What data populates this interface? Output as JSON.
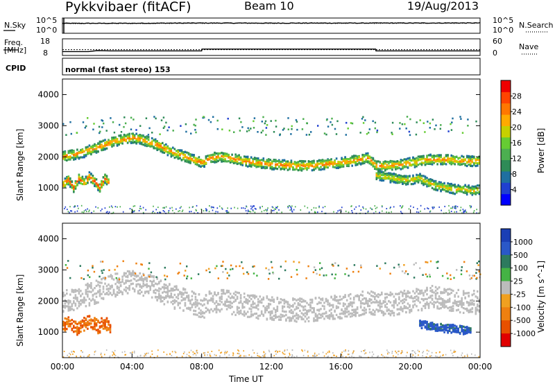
{
  "header": {
    "title": "Pykkvibaer (fitACF)",
    "beam": "Beam 10",
    "date": "19/Aug/2013"
  },
  "noise_panel": {
    "left_label": "N.Sky",
    "left_ticks": [
      "10^5",
      "10^0"
    ],
    "right_label": "N.Search",
    "right_ticks": [
      "10^5",
      "10^0"
    ]
  },
  "freq_panel": {
    "left_label_1": "Freq.",
    "left_label_2": "[MHz]",
    "left_ticks": [
      "18",
      "8"
    ],
    "right_label": "Nave",
    "right_ticks": [
      "60",
      "0"
    ]
  },
  "cpid": {
    "label": "CPID",
    "mode": "normal (fast stereo) 153"
  },
  "chart_data": [
    {
      "type": "line",
      "panel": "noise",
      "series": [
        {
          "name": "N.Sky",
          "style": "solid",
          "x": [
            "00:00",
            "04:00",
            "06:00",
            "08:00",
            "12:00",
            "16:00",
            "20:00",
            "24:00"
          ],
          "values": [
            2500,
            2600,
            3000,
            3200,
            3000,
            3100,
            3200,
            3500
          ]
        },
        {
          "name": "N.Search",
          "style": "dotted",
          "x": [
            "00:00",
            "04:00",
            "06:00",
            "08:00",
            "12:00",
            "16:00",
            "20:00",
            "24:00"
          ],
          "values": [
            2000,
            2100,
            2400,
            2500,
            2400,
            2500,
            2600,
            2800
          ]
        }
      ]
    },
    {
      "type": "line",
      "panel": "frequency",
      "series": [
        {
          "name": "Freq.",
          "unit": "MHz",
          "style": "solid",
          "x": [
            "00:00",
            "01:30",
            "02:00",
            "02:45",
            "08:00",
            "08:01",
            "18:00",
            "18:01",
            "24:00"
          ],
          "values": [
            9.8,
            9.8,
            10.5,
            10.3,
            10.3,
            11.6,
            11.6,
            10.3,
            10.3
          ]
        },
        {
          "name": "Nave",
          "style": "dotted",
          "x": [
            "00:00",
            "24:00"
          ],
          "values": [
            19,
            19
          ]
        }
      ],
      "ylim_left": [
        8,
        18
      ],
      "ylim_right": [
        0,
        60
      ]
    },
    {
      "type": "heatmap",
      "panel": "power",
      "ylabel": "Slant Range [km]",
      "xlabel": "",
      "ylim": [
        180,
        4500
      ],
      "yticks": [
        "1000",
        "2000",
        "3000",
        "4000"
      ],
      "colorbar": {
        "label": "Power [dB]",
        "ticks": [
          "4",
          "8",
          "12",
          "16",
          "20",
          "24",
          "28"
        ],
        "range": [
          0,
          32
        ]
      },
      "bands": [
        {
          "t": [
            0.0,
            0.5,
            1.0,
            1.5,
            2.0,
            2.5,
            3.0,
            3.5,
            4.0,
            4.5,
            5.0,
            5.5,
            6.0,
            6.5,
            7.0,
            7.5,
            8.0,
            8.5,
            9.0,
            9.5,
            10.0,
            10.5,
            11.0,
            11.5,
            12.0,
            12.5,
            13.0,
            13.5,
            14.0,
            14.5,
            15.0,
            15.5,
            16.0,
            16.5,
            17.0,
            17.5,
            18.0,
            18.5,
            19.0,
            19.5,
            20.0,
            20.5,
            21.0,
            21.5,
            22.0,
            22.5,
            23.0,
            23.5,
            24.0
          ],
          "range_km": [
            2000,
            2050,
            2100,
            2200,
            2300,
            2400,
            2500,
            2550,
            2600,
            2550,
            2450,
            2350,
            2200,
            2100,
            2000,
            1900,
            1800,
            1950,
            2000,
            1950,
            1900,
            1850,
            1800,
            1780,
            1750,
            1730,
            1720,
            1700,
            1700,
            1720,
            1750,
            1780,
            1800,
            1850,
            1900,
            1950,
            1700,
            1700,
            1720,
            1750,
            1800,
            1850,
            1900,
            1900,
            1900,
            1880,
            1860,
            1850,
            1850
          ],
          "power_db": 26,
          "width_km": 320
        },
        {
          "t": [
            0.0,
            0.3,
            0.6,
            0.9,
            1.2,
            1.5,
            1.8,
            2.1,
            2.4,
            2.7
          ],
          "range_km": [
            1100,
            1250,
            1000,
            1300,
            1150,
            1350,
            1200,
            1000,
            1300,
            1100
          ],
          "power_db": 29,
          "width_km": 300
        },
        {
          "t": [
            18.0,
            18.5,
            19.0,
            19.5,
            20.0,
            20.5,
            21.0,
            21.5,
            22.0,
            22.5,
            23.0,
            23.5,
            24.0
          ],
          "range_km": [
            1400,
            1350,
            1300,
            1250,
            1250,
            1300,
            1150,
            1050,
            1000,
            950,
            950,
            900,
            950
          ],
          "power_db": 22,
          "width_km": 300
        }
      ]
    },
    {
      "type": "heatmap",
      "panel": "velocity",
      "ylabel": "Slant Range [km]",
      "xlabel": "Time UT",
      "ylim": [
        180,
        4500
      ],
      "yticks": [
        "1000",
        "2000",
        "3000",
        "4000"
      ],
      "xticks": [
        "00:00",
        "04:00",
        "08:00",
        "12:00",
        "16:00",
        "20:00",
        "00:00"
      ],
      "colorbar": {
        "label": "Velocity [m s^-1]",
        "ticks": [
          "1000",
          "500",
          "100",
          "25",
          "-25",
          "-100",
          "-500",
          "-1000"
        ]
      },
      "bands": [
        {
          "t": [
            0.0,
            0.5,
            1.0,
            1.5,
            2.0,
            2.5,
            3.0,
            3.5,
            4.0,
            4.5,
            5.0,
            5.5,
            6.0,
            6.5,
            7.0,
            7.5,
            8.0,
            8.5,
            9.0,
            9.5,
            10.0,
            10.5,
            11.0,
            11.5,
            12.0,
            12.5,
            13.0,
            13.5,
            14.0,
            14.5,
            15.0,
            15.5,
            16.0,
            16.5,
            17.0,
            17.5,
            18.0,
            18.5,
            19.0,
            19.5,
            20.0,
            20.5,
            21.0,
            21.5,
            22.0,
            22.5,
            23.0,
            23.5,
            24.0
          ],
          "range_km": [
            2000,
            2050,
            2100,
            2200,
            2300,
            2400,
            2500,
            2550,
            2600,
            2550,
            2450,
            2350,
            2200,
            2100,
            2000,
            1900,
            1800,
            1950,
            2000,
            1950,
            1900,
            1850,
            1800,
            1780,
            1750,
            1730,
            1720,
            1700,
            1700,
            1720,
            1750,
            1780,
            1800,
            1850,
            1900,
            1950,
            1900,
            1900,
            1900,
            1950,
            2000,
            2050,
            2100,
            2100,
            2050,
            2000,
            1950,
            1950,
            1950
          ],
          "velocity": 0,
          "width_km": 750
        },
        {
          "t": [
            0.0,
            0.4,
            0.8,
            1.2,
            1.6,
            2.0,
            2.4,
            2.8
          ],
          "range_km": [
            1200,
            1300,
            1100,
            1250,
            1350,
            1150,
            1300,
            1100
          ],
          "velocity": -300,
          "width_km": 420
        },
        {
          "t": [
            20.5,
            21.0,
            21.5,
            22.0,
            22.5,
            23.0,
            23.5
          ],
          "range_km": [
            1250,
            1200,
            1150,
            1100,
            1100,
            1050,
            1050
          ],
          "velocity": 400,
          "width_km": 260
        }
      ]
    }
  ]
}
